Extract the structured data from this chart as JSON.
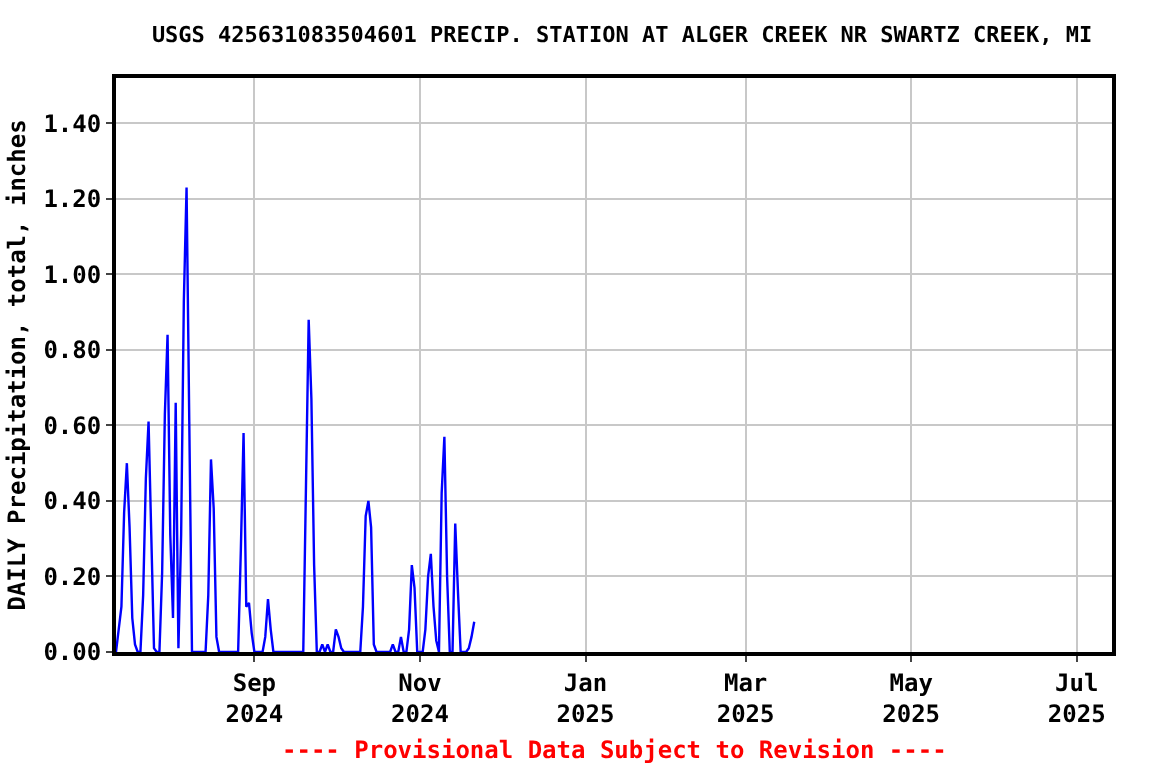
{
  "chart_data": {
    "type": "line",
    "title": "USGS 425631083504601 PRECIP. STATION AT ALGER CREEK NR SWARTZ CREEK, MI",
    "ylabel": "DAILY Precipitation, total, inches",
    "annotations": [
      "---- Provisional Data Subject to Revision ----"
    ],
    "x": [
      "2024-07-12",
      "2024-07-14",
      "2024-07-15",
      "2024-07-16",
      "2024-07-17",
      "2024-07-18",
      "2024-07-19",
      "2024-07-20",
      "2024-07-21",
      "2024-07-22",
      "2024-07-23",
      "2024-07-24",
      "2024-07-25",
      "2024-07-26",
      "2024-07-27",
      "2024-07-28",
      "2024-07-29",
      "2024-07-30",
      "2024-07-31",
      "2024-08-01",
      "2024-08-02",
      "2024-08-03",
      "2024-08-04",
      "2024-08-05",
      "2024-08-06",
      "2024-08-07",
      "2024-08-08",
      "2024-08-09",
      "2024-08-14",
      "2024-08-15",
      "2024-08-16",
      "2024-08-17",
      "2024-08-18",
      "2024-08-19",
      "2024-08-26",
      "2024-08-27",
      "2024-08-28",
      "2024-08-29",
      "2024-08-30",
      "2024-08-31",
      "2024-09-01",
      "2024-09-04",
      "2024-09-05",
      "2024-09-06",
      "2024-09-07",
      "2024-09-08",
      "2024-09-19",
      "2024-09-20",
      "2024-09-21",
      "2024-09-22",
      "2024-09-23",
      "2024-09-24",
      "2024-09-25",
      "2024-09-26",
      "2024-09-27",
      "2024-09-28",
      "2024-09-29",
      "2024-09-30",
      "2024-10-01",
      "2024-10-02",
      "2024-10-03",
      "2024-10-04",
      "2024-10-10",
      "2024-10-11",
      "2024-10-12",
      "2024-10-13",
      "2024-10-14",
      "2024-10-15",
      "2024-10-16",
      "2024-10-21",
      "2024-10-22",
      "2024-10-23",
      "2024-10-24",
      "2024-10-25",
      "2024-10-26",
      "2024-10-27",
      "2024-10-28",
      "2024-10-29",
      "2024-10-30",
      "2024-10-31",
      "2024-11-02",
      "2024-11-03",
      "2024-11-04",
      "2024-11-05",
      "2024-11-06",
      "2024-11-07",
      "2024-11-08",
      "2024-11-09",
      "2024-11-10",
      "2024-11-11",
      "2024-11-12",
      "2024-11-13",
      "2024-11-14",
      "2024-11-15",
      "2024-11-16",
      "2024-11-18",
      "2024-11-19",
      "2024-11-20",
      "2024-11-21"
    ],
    "series": [
      {
        "color": "#0000ff",
        "values": [
          0,
          0.12,
          0.37,
          0.5,
          0.33,
          0.09,
          0.02,
          0,
          0,
          0.15,
          0.46,
          0.61,
          0.31,
          0.01,
          0,
          0,
          0.21,
          0.63,
          0.84,
          0.31,
          0.09,
          0.66,
          0.01,
          0.31,
          0.93,
          1.23,
          0.61,
          0,
          0,
          0.15,
          0.51,
          0.38,
          0.04,
          0,
          0,
          0.27,
          0.58,
          0.12,
          0.13,
          0.05,
          0,
          0,
          0.04,
          0.14,
          0.06,
          0,
          0,
          0.44,
          0.88,
          0.67,
          0.23,
          0,
          0,
          0.02,
          0,
          0.02,
          0,
          0,
          0.06,
          0.04,
          0.01,
          0,
          0,
          0.12,
          0.36,
          0.4,
          0.33,
          0.02,
          0,
          0,
          0.02,
          0,
          0,
          0.04,
          0,
          0,
          0.06,
          0.23,
          0.17,
          0,
          0,
          0.06,
          0.2,
          0.26,
          0.12,
          0.03,
          0,
          0.42,
          0.57,
          0.2,
          0,
          0,
          0.34,
          0.16,
          0,
          0,
          0.01,
          0.04,
          0.08
        ]
      }
    ],
    "xlim": [
      "2024-07-12",
      "2025-07-14"
    ],
    "xticks": [
      {
        "value": "2024-09-01",
        "label": "Sep\n2024"
      },
      {
        "value": "2024-11-01",
        "label": "Nov\n2024"
      },
      {
        "value": "2025-01-01",
        "label": "Jan\n2025"
      },
      {
        "value": "2025-03-01",
        "label": "Mar\n2025"
      },
      {
        "value": "2025-05-01",
        "label": "May\n2025"
      },
      {
        "value": "2025-07-01",
        "label": "Jul\n2025"
      }
    ],
    "ylim": [
      0,
      1.52
    ],
    "yticks": [
      {
        "value": 0,
        "label": "0.00"
      },
      {
        "value": 0.2,
        "label": "0.20"
      },
      {
        "value": 0.4,
        "label": "0.40"
      },
      {
        "value": 0.6,
        "label": "0.60"
      },
      {
        "value": 0.8,
        "label": "0.80"
      },
      {
        "value": 1.0,
        "label": "1.00"
      },
      {
        "value": 1.2,
        "label": "1.20"
      },
      {
        "value": 1.4,
        "label": "1.40"
      }
    ],
    "grid": true,
    "marker": "none",
    "line_style": "solid"
  }
}
